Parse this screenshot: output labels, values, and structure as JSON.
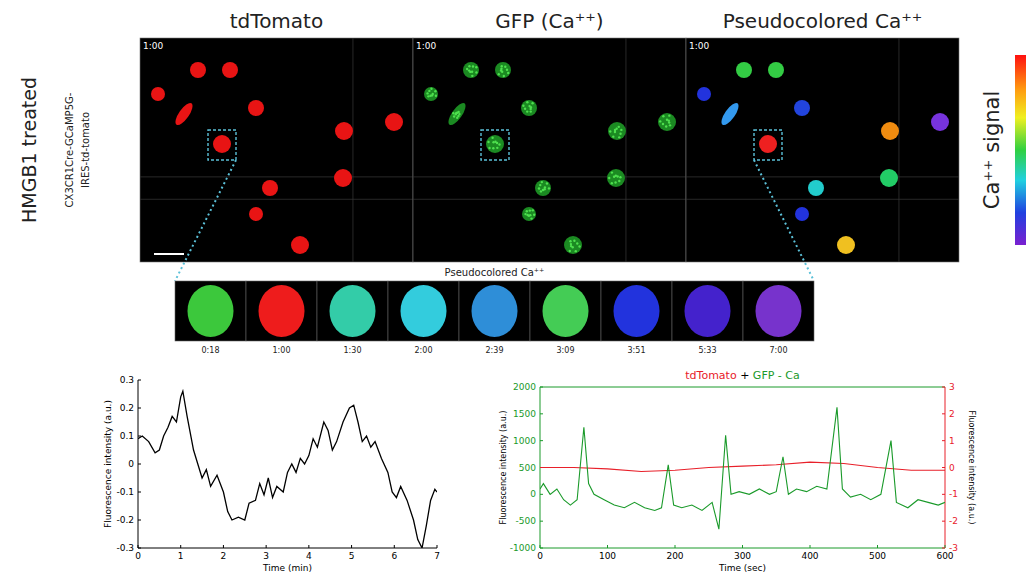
{
  "header": {
    "condition": "HMGB1 treated",
    "genotype": [
      "CX3CR1Cre-GCaMP5G-",
      "IRES-td-tomato"
    ]
  },
  "panels": [
    {
      "title": "tdTomato",
      "time": "1:00"
    },
    {
      "title": "GFP (Ca⁺⁺)",
      "time": "1:00"
    },
    {
      "title": "Pseudocolored Ca⁺⁺",
      "time": "1:00"
    }
  ],
  "colorbar": {
    "label": "Ca⁺⁺ signal"
  },
  "strip": {
    "title": "Pseudocolored Ca⁺⁺",
    "frames": [
      {
        "time": "0:18",
        "color": "#3cc83c"
      },
      {
        "time": "1:00",
        "color": "#ee1c1c"
      },
      {
        "time": "1:30",
        "color": "#33cca8"
      },
      {
        "time": "2:00",
        "color": "#33ccdd"
      },
      {
        "time": "2:39",
        "color": "#2e8ed8"
      },
      {
        "time": "3:09",
        "color": "#44cc55"
      },
      {
        "time": "3:51",
        "color": "#2233dd"
      },
      {
        "time": "5:33",
        "color": "#4422cc"
      },
      {
        "time": "7:00",
        "color": "#7733cc"
      }
    ]
  },
  "chart_data": [
    {
      "type": "line",
      "xlabel": "Time (min)",
      "ylabel": "Fluorescence intensity (a.u.)",
      "color": "#000000",
      "x": [
        0,
        0.1,
        0.25,
        0.4,
        0.5,
        0.6,
        0.7,
        0.8,
        0.9,
        1.0,
        1.05,
        1.15,
        1.3,
        1.4,
        1.5,
        1.6,
        1.7,
        1.85,
        2.0,
        2.1,
        2.2,
        2.35,
        2.5,
        2.6,
        2.75,
        2.85,
        2.95,
        3.05,
        3.15,
        3.25,
        3.4,
        3.5,
        3.6,
        3.7,
        3.8,
        3.9,
        4.0,
        4.1,
        4.2,
        4.35,
        4.45,
        4.55,
        4.65,
        4.8,
        4.95,
        5.05,
        5.15,
        5.25,
        5.35,
        5.45,
        5.55,
        5.7,
        5.85,
        5.95,
        6.05,
        6.15,
        6.3,
        6.45,
        6.55,
        6.65,
        6.75,
        6.85,
        6.95,
        7.0
      ],
      "values": [
        0.09,
        0.1,
        0.08,
        0.04,
        0.05,
        0.1,
        0.13,
        0.17,
        0.15,
        0.24,
        0.26,
        0.17,
        0.05,
        0,
        -0.05,
        -0.02,
        -0.08,
        -0.04,
        -0.1,
        -0.17,
        -0.2,
        -0.19,
        -0.2,
        -0.14,
        -0.13,
        -0.07,
        -0.11,
        -0.05,
        -0.12,
        -0.08,
        -0.1,
        -0.03,
        0,
        -0.03,
        0.02,
        0,
        0.03,
        0.09,
        0.06,
        0.15,
        0.12,
        0.05,
        0.08,
        0.15,
        0.2,
        0.21,
        0.15,
        0.08,
        0.1,
        0.06,
        0.08,
        0.02,
        -0.03,
        -0.1,
        -0.12,
        -0.08,
        -0.13,
        -0.2,
        -0.27,
        -0.3,
        -0.22,
        -0.13,
        -0.09,
        -0.1
      ],
      "xlim": [
        0,
        7
      ],
      "xticks": [
        0,
        1,
        2,
        3,
        4,
        5,
        6,
        7
      ],
      "ylim": [
        -0.3,
        0.3
      ],
      "yticks": [
        -0.3,
        -0.2,
        -0.1,
        0,
        0.1,
        0.2,
        0.3
      ],
      "grid": false
    },
    {
      "type": "line",
      "title": "tdTomato + GFP - Ca",
      "xlabel": "Time (sec)",
      "ylabel": "Fluorescence intensity (a.u.)",
      "y2label": "Fluorescence intensity (a.u.)",
      "series": [
        {
          "name": "tdTomato",
          "color": "#e8202a",
          "axis": "y2",
          "x": [
            0,
            50,
            100,
            150,
            200,
            250,
            300,
            350,
            400,
            450,
            500,
            550,
            600
          ],
          "values": [
            0,
            0,
            -0.05,
            -0.15,
            -0.1,
            0,
            0.05,
            0.1,
            0.2,
            0.15,
            0,
            -0.1,
            -0.1
          ]
        },
        {
          "name": "GFP - Ca",
          "color": "#1a9a2a",
          "x": [
            0,
            5,
            15,
            25,
            35,
            45,
            55,
            65,
            72,
            80,
            95,
            110,
            125,
            140,
            155,
            170,
            180,
            190,
            198,
            210,
            225,
            240,
            255,
            265,
            275,
            283,
            295,
            310,
            325,
            340,
            350,
            360,
            368,
            380,
            395,
            410,
            425,
            440,
            448,
            460,
            475,
            490,
            505,
            520,
            528,
            545,
            560,
            575,
            590,
            600
          ],
          "values": [
            100,
            200,
            0,
            100,
            -100,
            -200,
            -100,
            1250,
            200,
            0,
            -100,
            -200,
            -250,
            -150,
            -250,
            -300,
            -250,
            550,
            -200,
            -250,
            -200,
            -300,
            -150,
            -650,
            1100,
            0,
            50,
            0,
            100,
            0,
            50,
            700,
            0,
            100,
            50,
            150,
            100,
            1620,
            100,
            -50,
            0,
            -100,
            0,
            1000,
            -150,
            -250,
            -100,
            -150,
            -200,
            -150
          ]
        }
      ],
      "xlim": [
        0,
        600
      ],
      "xticks": [
        0,
        100,
        200,
        300,
        400,
        500,
        600
      ],
      "ylim": [
        -1000,
        2000
      ],
      "yticks": [
        -1000,
        -500,
        0,
        500,
        1000,
        1500,
        2000
      ],
      "y2lim": [
        -3,
        3
      ],
      "y2ticks": [
        -3,
        -2,
        -1,
        0,
        1,
        2,
        3
      ],
      "grid": false
    }
  ]
}
